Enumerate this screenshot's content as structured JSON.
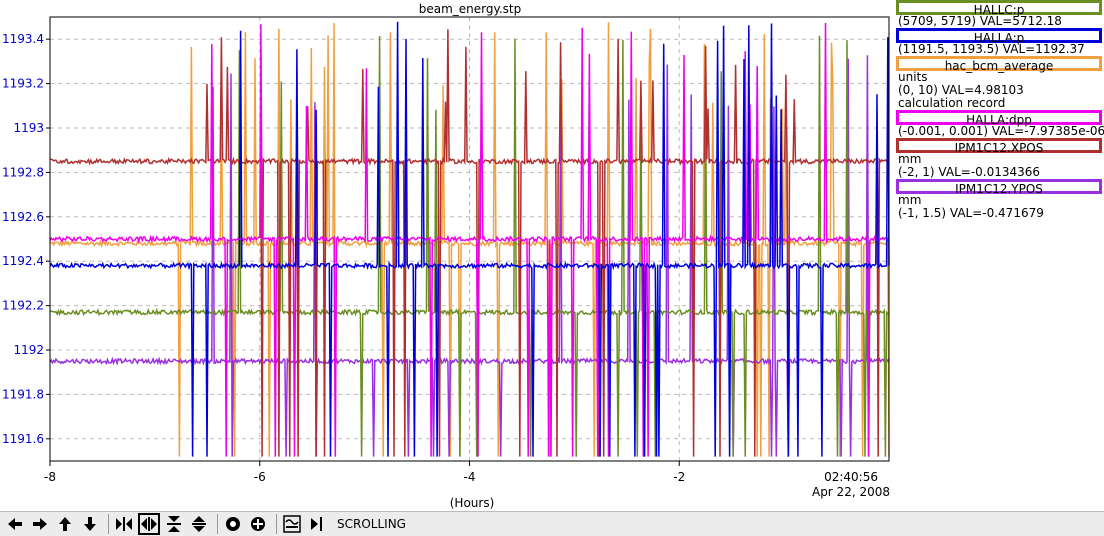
{
  "chart_data": {
    "type": "line",
    "title": "beam_energy.stp",
    "xlabel": "(Hours)",
    "time_stamp": "02:40:56",
    "date_stamp": "Apr 22, 2008",
    "x_range": [
      -8,
      0
    ],
    "x_ticks": [
      "-8",
      "-6",
      "-4",
      "-2"
    ],
    "x_tick_values": [
      -8,
      -6,
      -4,
      -2
    ],
    "y_range": [
      1191.5,
      1193.5
    ],
    "y_ticks": [
      "1193.4",
      "1193.2",
      "1193",
      "1192.8",
      "1192.6",
      "1192.4",
      "1192.2",
      "1192",
      "1191.8",
      "1191.6"
    ],
    "y_tick_values": [
      1193.4,
      1193.2,
      1193,
      1192.8,
      1192.6,
      1192.4,
      1192.2,
      1192,
      1191.8,
      1191.6
    ],
    "y_axis_color": "#0000cc",
    "grid": true,
    "series": [
      {
        "name": "HALLC:p",
        "color": "#6b8e23",
        "baseline": 1192.17,
        "range": "(5709, 5719)",
        "value": "VAL=5712.18"
      },
      {
        "name": "HALLA:p",
        "color": "#0000dd",
        "baseline": 1192.38,
        "range": "(1191.5, 1193.5)",
        "value": "VAL=1192.37"
      },
      {
        "name": "hac_bcm_average",
        "color": "#f0a040",
        "baseline": 1192.48,
        "units": "units",
        "range": "(0, 10)",
        "value": "VAL=4.98103",
        "note": "calculation record"
      },
      {
        "name": "HALLA:dpp",
        "color": "#ee00ee",
        "baseline": 1192.5,
        "range": "(-0.001, 0.001)",
        "value": "VAL=-7.97385e-06"
      },
      {
        "name": "IPM1C12.XPOS",
        "color": "#b03030",
        "baseline": 1192.85,
        "units": "mm",
        "range": "(-2, 1)",
        "value": "VAL=-0.0134366"
      },
      {
        "name": "IPM1C12.YPOS",
        "color": "#9a30e0",
        "baseline": 1191.95,
        "units": "mm",
        "range": "(-1, 1.5)",
        "value": "VAL=-0.471679"
      }
    ]
  },
  "toolbar": {
    "mode_label": "SCROLLING",
    "buttons": [
      "arrow-left-icon",
      "arrow-right-icon",
      "arrow-up-icon",
      "arrow-down-icon",
      "zoom-in-x-icon",
      "zoom-out-x-icon",
      "zoom-in-y-icon",
      "zoom-out-y-icon",
      "autoscale-icon",
      "center-icon",
      "fit-icon",
      "scroll-icon"
    ]
  }
}
